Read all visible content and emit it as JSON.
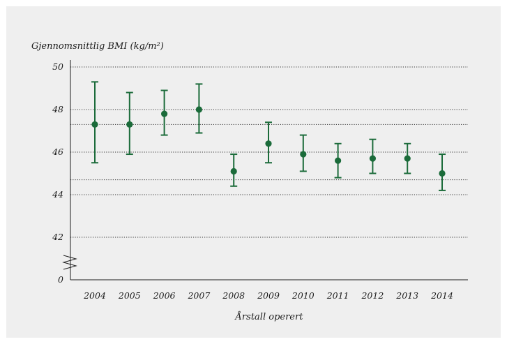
{
  "chart_data": {
    "type": "scatter",
    "ylabel": "Gjennomsnittlig BMI (kg/m²)",
    "xlabel": "Årstall operert",
    "categories": [
      "2004",
      "2005",
      "2006",
      "2007",
      "2008",
      "2009",
      "2010",
      "2011",
      "2012",
      "2013",
      "2014"
    ],
    "series": [
      {
        "values": [
          47.3,
          47.3,
          47.8,
          48.0,
          45.1,
          46.4,
          45.9,
          45.6,
          45.7,
          45.7,
          45.0
        ],
        "err_low": [
          45.5,
          45.9,
          46.8,
          46.9,
          44.4,
          45.5,
          45.1,
          44.8,
          45.0,
          45.0,
          44.2
        ],
        "err_high": [
          49.3,
          48.8,
          48.9,
          49.2,
          45.9,
          47.4,
          46.8,
          46.4,
          46.6,
          46.4,
          45.9
        ]
      }
    ],
    "y_ticks": [
      "0",
      "42",
      "44",
      "46",
      "48",
      "50"
    ],
    "ylim": [
      42,
      50
    ],
    "y_axis_break": true,
    "reference_lines": [
      47.3,
      44.7
    ],
    "grid": "dotted horizontal",
    "colors": {
      "marker": "#1b6b3a",
      "panel": "#efefef",
      "axis": "#1d1d1d"
    }
  }
}
